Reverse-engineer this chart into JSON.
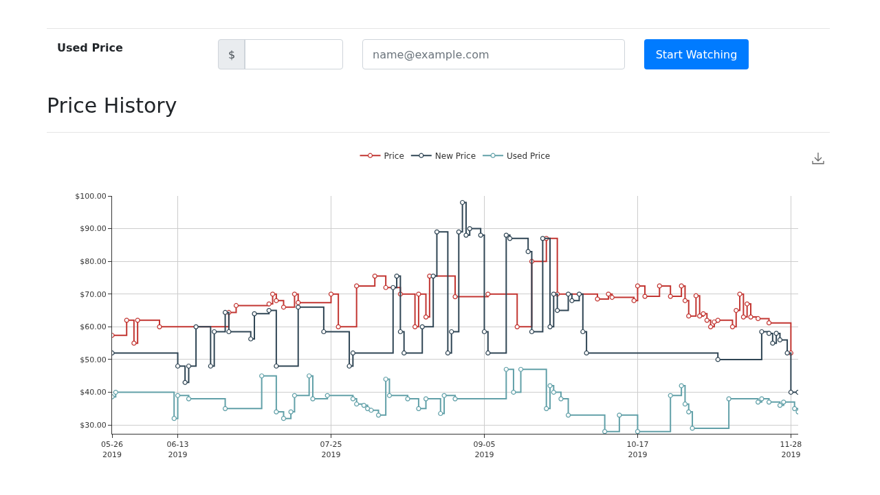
{
  "chart_data": {
    "type": "step",
    "title": "Price History",
    "annotations": [
      "Used Price",
      "$",
      "name@example.com",
      "Start Watching"
    ],
    "legend": "top",
    "marker": "circle",
    "grid": true,
    "xlim": [
      "2019-05-26",
      "2019-11-30"
    ],
    "xticks": [
      {
        "value": "2019-05-26",
        "label": "05-26\n2019"
      },
      {
        "value": "2019-06-13",
        "label": "06-13\n2019"
      },
      {
        "value": "2019-07-25",
        "label": "07-25\n2019"
      },
      {
        "value": "2019-09-05",
        "label": "09-05\n2019"
      },
      {
        "value": "2019-10-17",
        "label": "10-17\n2019"
      },
      {
        "value": "2019-11-28",
        "label": "11-28\n2019"
      }
    ],
    "ylim": [
      27.3,
      100
    ],
    "yticks": [
      {
        "value": 30,
        "label": "$30.00"
      },
      {
        "value": 40,
        "label": "$40.00"
      },
      {
        "value": 50,
        "label": "$50.00"
      },
      {
        "value": 60,
        "label": "$60.00"
      },
      {
        "value": 70,
        "label": "$70.00"
      },
      {
        "value": 80,
        "label": "$80.00"
      },
      {
        "value": 90,
        "label": "$90.00"
      },
      {
        "value": 100,
        "label": "$100.00"
      }
    ],
    "series": [
      {
        "name": "Price",
        "color": "#c23531",
        "x": [
          "2019-05-26",
          "2019-05-30",
          "2019-06-01",
          "2019-06-02",
          "2019-06-08",
          "2019-06-27",
          "2019-06-29",
          "2019-07-08",
          "2019-07-09",
          "2019-07-10",
          "2019-07-12",
          "2019-07-15",
          "2019-07-16",
          "2019-07-25",
          "2019-07-27",
          "2019-08-01",
          "2019-08-06",
          "2019-08-09",
          "2019-08-13",
          "2019-08-17",
          "2019-08-18",
          "2019-08-20",
          "2019-08-21",
          "2019-08-28",
          "2019-09-06",
          "2019-09-14",
          "2019-09-18",
          "2019-09-22",
          "2019-09-25",
          "2019-10-06",
          "2019-10-09",
          "2019-10-10",
          "2019-10-16",
          "2019-10-17",
          "2019-10-19",
          "2019-10-23",
          "2019-10-26",
          "2019-10-29",
          "2019-10-30",
          "2019-10-31",
          "2019-11-02",
          "2019-11-03",
          "2019-11-04",
          "2019-11-05",
          "2019-11-06",
          "2019-11-07",
          "2019-11-08",
          "2019-11-12",
          "2019-11-13",
          "2019-11-14",
          "2019-11-15",
          "2019-11-16",
          "2019-11-17",
          "2019-11-19",
          "2019-11-22",
          "2019-11-28"
        ],
        "values": [
          57.4,
          62,
          55,
          62,
          60,
          64.4,
          66.5,
          67,
          70,
          68,
          66,
          70,
          67.4,
          70,
          60,
          72.5,
          75.5,
          72,
          70,
          60,
          70,
          63,
          75.5,
          69.2,
          70,
          60,
          80,
          87,
          70,
          68.5,
          70,
          69,
          68,
          72.5,
          69.3,
          72.5,
          69.3,
          72.5,
          68,
          63.3,
          69.5,
          63.3,
          64,
          62,
          60,
          61.5,
          62,
          60,
          65,
          70,
          63,
          67,
          63,
          62.5,
          61.2,
          52
        ]
      },
      {
        "name": "New Price",
        "color": "#2f4554",
        "x": [
          "2019-05-26",
          "2019-06-13",
          "2019-06-15",
          "2019-06-16",
          "2019-06-18",
          "2019-06-22",
          "2019-06-23",
          "2019-06-26",
          "2019-06-27",
          "2019-07-03",
          "2019-07-04",
          "2019-07-08",
          "2019-07-10",
          "2019-07-16",
          "2019-07-23",
          "2019-07-30",
          "2019-07-31",
          "2019-08-11",
          "2019-08-12",
          "2019-08-13",
          "2019-08-14",
          "2019-08-19",
          "2019-08-22",
          "2019-08-23",
          "2019-08-26",
          "2019-08-27",
          "2019-08-29",
          "2019-08-30",
          "2019-08-31",
          "2019-09-01",
          "2019-09-04",
          "2019-09-05",
          "2019-09-06",
          "2019-09-11",
          "2019-09-12",
          "2019-09-17",
          "2019-09-18",
          "2019-09-21",
          "2019-09-23",
          "2019-09-24",
          "2019-09-25",
          "2019-09-28",
          "2019-09-29",
          "2019-10-01",
          "2019-10-02",
          "2019-10-03",
          "2019-11-08",
          "2019-11-20",
          "2019-11-22",
          "2019-11-23",
          "2019-11-24",
          "2019-11-25",
          "2019-11-27",
          "2019-11-28",
          "2019-11-30"
        ],
        "values": [
          52,
          48,
          43,
          48,
          60,
          48,
          58.5,
          64.4,
          58.5,
          56.3,
          64,
          65,
          48,
          66,
          58.5,
          48,
          52,
          72,
          75.5,
          58.5,
          52,
          60,
          75.5,
          89,
          52,
          58.5,
          89,
          98,
          88,
          90,
          88,
          58.5,
          52,
          88,
          87,
          83,
          58.5,
          87,
          60,
          70,
          65,
          70,
          68,
          70,
          58.5,
          52,
          50,
          58.5,
          58,
          55,
          58,
          56,
          52,
          40,
          40
        ]
      },
      {
        "name": "Used Price",
        "color": "#61a0a8",
        "x": [
          "2019-05-26",
          "2019-05-27",
          "2019-06-12",
          "2019-06-13",
          "2019-06-16",
          "2019-06-26",
          "2019-07-06",
          "2019-07-10",
          "2019-07-12",
          "2019-07-14",
          "2019-07-15",
          "2019-07-19",
          "2019-07-20",
          "2019-07-24",
          "2019-07-31",
          "2019-08-01",
          "2019-08-03",
          "2019-08-04",
          "2019-08-05",
          "2019-08-07",
          "2019-08-09",
          "2019-08-10",
          "2019-08-15",
          "2019-08-18",
          "2019-08-20",
          "2019-08-24",
          "2019-08-25",
          "2019-08-28",
          "2019-09-11",
          "2019-09-13",
          "2019-09-15",
          "2019-09-22",
          "2019-09-23",
          "2019-09-24",
          "2019-09-26",
          "2019-09-28",
          "2019-10-08",
          "2019-10-12",
          "2019-10-17",
          "2019-10-26",
          "2019-10-29",
          "2019-10-30",
          "2019-10-31",
          "2019-11-01",
          "2019-11-11",
          "2019-11-19",
          "2019-11-20",
          "2019-11-22",
          "2019-11-25",
          "2019-11-26",
          "2019-11-29",
          "2019-11-30"
        ],
        "values": [
          38.6,
          40,
          32,
          39,
          38,
          35,
          45,
          34,
          32,
          34,
          39,
          45,
          38,
          39,
          38,
          36.4,
          36,
          35,
          34.5,
          33,
          44,
          39,
          38,
          35,
          38,
          33.5,
          39,
          38,
          47,
          40,
          47,
          35,
          42,
          40,
          38,
          33,
          28,
          33,
          28,
          39,
          42,
          36.4,
          34,
          29,
          38,
          37,
          38,
          37,
          36,
          37,
          35,
          34
        ]
      }
    ]
  }
}
